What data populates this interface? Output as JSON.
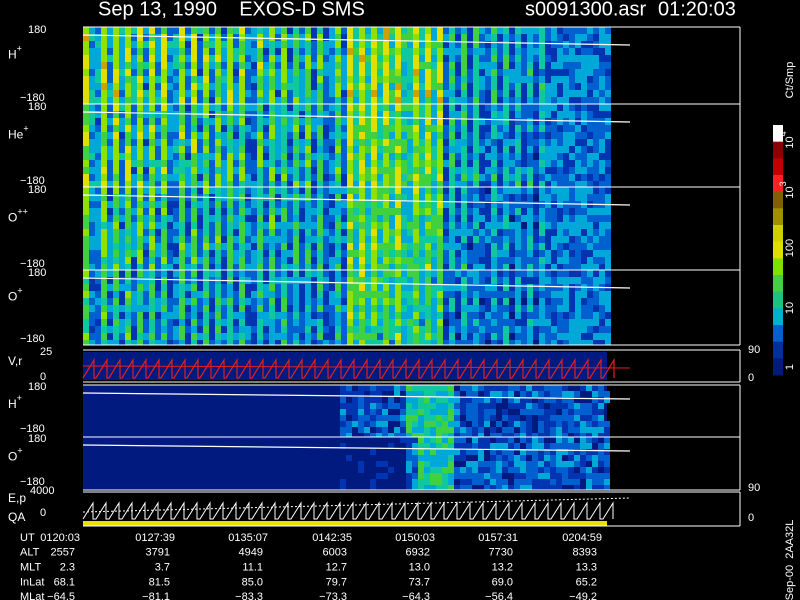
{
  "header": {
    "title": "Sep 13, 1990    EXOS-D SMS",
    "file": "s0091300.asr",
    "time": "01:20:03"
  },
  "panels": [
    {
      "ion": "H",
      "charge": "+",
      "top": "180",
      "bottom": "−180"
    },
    {
      "ion": "He",
      "charge": "+",
      "top": "180",
      "bottom": "−180"
    },
    {
      "ion": "O",
      "charge": "++",
      "top": "180",
      "bottom": "−180"
    },
    {
      "ion": "O",
      "charge": "+",
      "top": "180",
      "bottom": "−180"
    }
  ],
  "vr": {
    "label": "V,r",
    "top": "25",
    "bottom": "0",
    "right_top": "90",
    "right_bottom": "0"
  },
  "lower_panels": [
    {
      "ion": "H",
      "charge": "+",
      "top": "180",
      "bottom": "−180"
    },
    {
      "ion": "O",
      "charge": "+",
      "top": "180",
      "bottom": "−180"
    }
  ],
  "ep": {
    "label1": "E,p",
    "label2": "QA",
    "top": "4000",
    "bottom": "0",
    "right_top": "90",
    "right_bottom": "0"
  },
  "colorbar": {
    "unit": "Ct/Smp",
    "labels": [
      {
        "base": "10",
        "exp": "4"
      },
      {
        "base": "10",
        "exp": "3"
      },
      {
        "base": "100"
      },
      {
        "base": "10"
      },
      {
        "base": "1"
      }
    ]
  },
  "footer": {
    "rows": [
      {
        "label": "UT",
        "values": [
          "0120:03",
          "0127:39",
          "0135:07",
          "0142:35",
          "0150:03",
          "0157:31",
          "0204:59"
        ]
      },
      {
        "label": "ALT",
        "values": [
          "2557",
          "3791",
          "4949",
          "6003",
          "6932",
          "7730",
          "8393"
        ]
      },
      {
        "label": "MLT",
        "values": [
          "2.3",
          "3.7",
          "11.1",
          "12.7",
          "13.0",
          "13.2",
          "13.3"
        ]
      },
      {
        "label": "InLat",
        "values": [
          "68.1",
          "81.5",
          "85.0",
          "79.7",
          "73.7",
          "69.0",
          "65.2"
        ]
      },
      {
        "label": "MLat",
        "values": [
          "−64.5",
          "−81.1",
          "−83.3",
          "−73.3",
          "−64.3",
          "−56.4",
          "−49.2"
        ]
      }
    ]
  },
  "stamp": "Sep-00  2AA32L"
}
